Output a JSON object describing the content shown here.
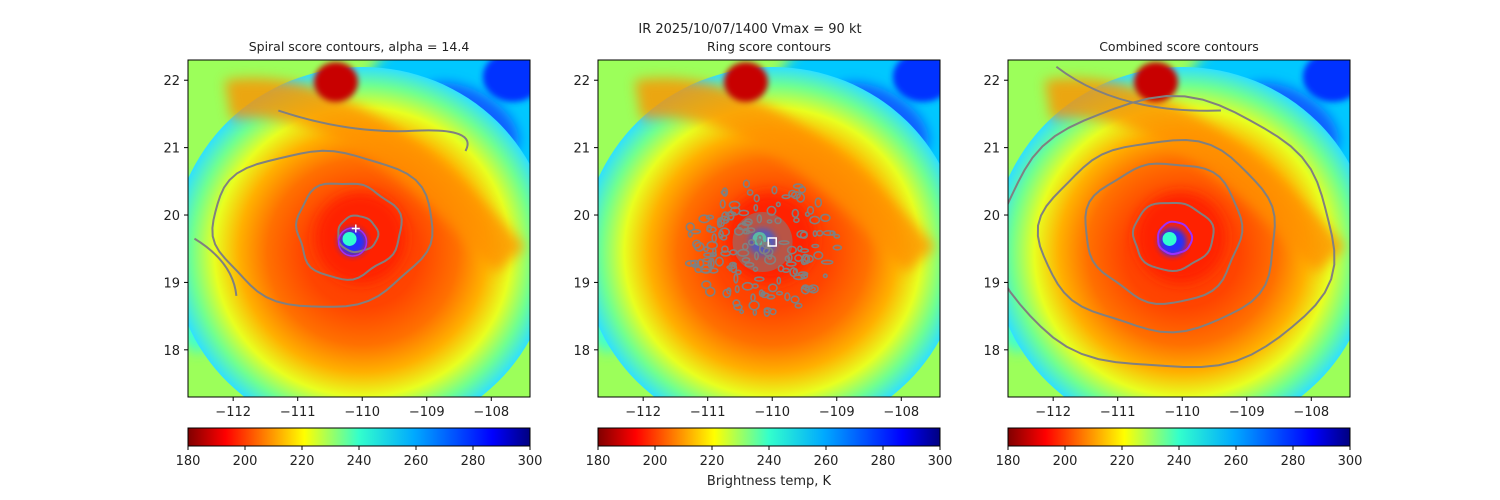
{
  "figure": {
    "title": "IR  2025/10/07/1400    Vmax = 90 kt",
    "colorbar_label": "Brightness temp, K"
  },
  "colors": {
    "contour": "#808080",
    "inner_contour": "#9b30ff",
    "marker": "#ffffff"
  },
  "chart_data": [
    {
      "type": "heatmap",
      "title": "Spiral score contours, alpha = 14.4",
      "xlim": [
        -112.7,
        -107.4
      ],
      "ylim": [
        17.3,
        22.3
      ],
      "xticks": [
        "−112",
        "−111",
        "−110",
        "−109",
        "−108"
      ],
      "xtick_values": [
        -112,
        -111,
        -110,
        -109,
        -108
      ],
      "yticks": [
        "18",
        "19",
        "20",
        "21",
        "22"
      ],
      "ytick_values": [
        18,
        19,
        20,
        21,
        22
      ],
      "center": [
        -110.15,
        19.6
      ],
      "colorbar": {
        "ticks": [
          "180",
          "200",
          "220",
          "240",
          "260",
          "280",
          "300"
        ],
        "range": [
          180,
          300
        ],
        "colormap": "jet_r"
      },
      "marker": "plus",
      "marker_position": [
        -110.1,
        19.8
      ]
    },
    {
      "type": "heatmap",
      "title": "Ring score contours",
      "xlim": [
        -112.7,
        -107.4
      ],
      "ylim": [
        17.3,
        22.3
      ],
      "xticks": [
        "−112",
        "−111",
        "−110",
        "−109",
        "−108"
      ],
      "xtick_values": [
        -112,
        -111,
        -110,
        -109,
        -108
      ],
      "yticks": [
        "18",
        "19",
        "20",
        "21",
        "22"
      ],
      "ytick_values": [
        18,
        19,
        20,
        21,
        22
      ],
      "center": [
        -110.15,
        19.6
      ],
      "colorbar": {
        "ticks": [
          "180",
          "200",
          "220",
          "240",
          "260",
          "280",
          "300"
        ],
        "range": [
          180,
          300
        ],
        "colormap": "jet_r"
      },
      "marker": "square",
      "marker_position": [
        -110.0,
        19.6
      ]
    },
    {
      "type": "heatmap",
      "title": "Combined score contours",
      "xlim": [
        -112.7,
        -107.4
      ],
      "ylim": [
        17.3,
        22.3
      ],
      "xticks": [
        "−112",
        "−111",
        "−110",
        "−109",
        "−108"
      ],
      "xtick_values": [
        -112,
        -111,
        -110,
        -109,
        -108
      ],
      "yticks": [
        "18",
        "19",
        "20",
        "21",
        "22"
      ],
      "ytick_values": [
        18,
        19,
        20,
        21,
        22
      ],
      "center": [
        -110.15,
        19.6
      ],
      "colorbar": {
        "ticks": [
          "180",
          "200",
          "220",
          "240",
          "260",
          "280",
          "300"
        ],
        "range": [
          180,
          300
        ],
        "colormap": "jet_r"
      },
      "marker": "none",
      "marker_position": null
    }
  ]
}
